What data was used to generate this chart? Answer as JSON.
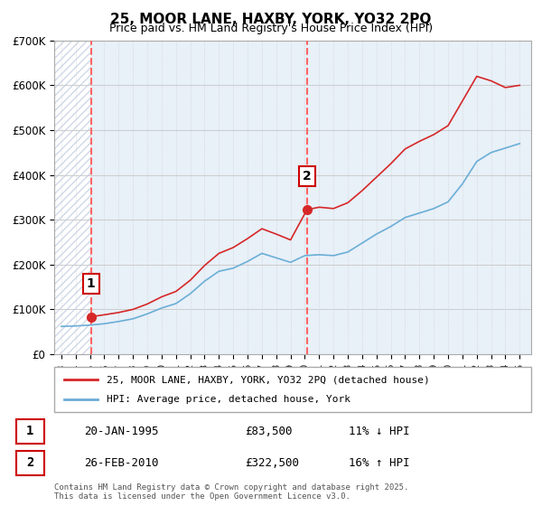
{
  "title": "25, MOOR LANE, HAXBY, YORK, YO32 2PQ",
  "subtitle": "Price paid vs. HM Land Registry's House Price Index (HPI)",
  "ylim": [
    0,
    700000
  ],
  "yticks": [
    0,
    100000,
    200000,
    300000,
    400000,
    500000,
    600000,
    700000
  ],
  "ytick_labels": [
    "£0",
    "£100K",
    "£200K",
    "£300K",
    "£400K",
    "£500K",
    "£600K",
    "£700K"
  ],
  "sale1": {
    "date": 1995.06,
    "price": 83500,
    "label": "1",
    "marker_x": 1995.06,
    "marker_y": 83500
  },
  "sale2": {
    "date": 2010.15,
    "price": 322500,
    "label": "2",
    "marker_x": 2010.15,
    "marker_y": 322500
  },
  "vline1_x": 1995.06,
  "vline2_x": 2010.15,
  "legend_line1": "25, MOOR LANE, HAXBY, YORK, YO32 2PQ (detached house)",
  "legend_line2": "HPI: Average price, detached house, York",
  "annotation1": [
    "1",
    "20-JAN-1995",
    "£83,500",
    "11% ↓ HPI"
  ],
  "annotation2": [
    "2",
    "26-FEB-2010",
    "£322,500",
    "16% ↑ HPI"
  ],
  "copyright_text": "Contains HM Land Registry data © Crown copyright and database right 2025.\nThis data is licensed under the Open Government Licence v3.0.",
  "hpi_color": "#6baed6",
  "price_color": "#d62728",
  "vline_color": "#ff6666",
  "bg_hatch_color": "#d0d8e8",
  "grid_color": "#cccccc",
  "hpi_line_data": [
    [
      1993,
      62000
    ],
    [
      1994,
      63000
    ],
    [
      1995,
      65000
    ],
    [
      1996,
      68000
    ],
    [
      1997,
      73000
    ],
    [
      1998,
      79000
    ],
    [
      1999,
      90000
    ],
    [
      2000,
      103000
    ],
    [
      2001,
      113000
    ],
    [
      2002,
      135000
    ],
    [
      2003,
      163000
    ],
    [
      2004,
      185000
    ],
    [
      2005,
      192000
    ],
    [
      2006,
      207000
    ],
    [
      2007,
      225000
    ],
    [
      2008,
      215000
    ],
    [
      2009,
      205000
    ],
    [
      2010,
      220000
    ],
    [
      2011,
      222000
    ],
    [
      2012,
      220000
    ],
    [
      2013,
      228000
    ],
    [
      2014,
      248000
    ],
    [
      2015,
      268000
    ],
    [
      2016,
      285000
    ],
    [
      2017,
      305000
    ],
    [
      2018,
      315000
    ],
    [
      2019,
      325000
    ],
    [
      2020,
      340000
    ],
    [
      2021,
      380000
    ],
    [
      2022,
      430000
    ],
    [
      2023,
      450000
    ],
    [
      2024,
      460000
    ],
    [
      2025,
      470000
    ]
  ],
  "price_line_data": [
    [
      1995.06,
      83500
    ],
    [
      1996,
      88000
    ],
    [
      1997,
      93000
    ],
    [
      1998,
      100000
    ],
    [
      1999,
      112000
    ],
    [
      2000,
      128000
    ],
    [
      2001,
      140000
    ],
    [
      2002,
      165000
    ],
    [
      2003,
      198000
    ],
    [
      2004,
      225000
    ],
    [
      2005,
      238000
    ],
    [
      2006,
      258000
    ],
    [
      2007,
      280000
    ],
    [
      2008,
      268000
    ],
    [
      2009,
      255000
    ],
    [
      2010.15,
      322500
    ],
    [
      2011,
      328000
    ],
    [
      2012,
      325000
    ],
    [
      2013,
      338000
    ],
    [
      2014,
      365000
    ],
    [
      2015,
      395000
    ],
    [
      2016,
      425000
    ],
    [
      2017,
      458000
    ],
    [
      2018,
      475000
    ],
    [
      2019,
      490000
    ],
    [
      2020,
      510000
    ],
    [
      2021,
      565000
    ],
    [
      2022,
      620000
    ],
    [
      2023,
      610000
    ],
    [
      2024,
      595000
    ],
    [
      2025,
      600000
    ]
  ],
  "xlim_left": 1992.5,
  "xlim_right": 2025.8,
  "xticks": [
    1993,
    1994,
    1995,
    1996,
    1997,
    1998,
    1999,
    2000,
    2001,
    2002,
    2003,
    2004,
    2005,
    2006,
    2007,
    2008,
    2009,
    2010,
    2011,
    2012,
    2013,
    2014,
    2015,
    2016,
    2017,
    2018,
    2019,
    2020,
    2021,
    2022,
    2023,
    2024,
    2025
  ]
}
